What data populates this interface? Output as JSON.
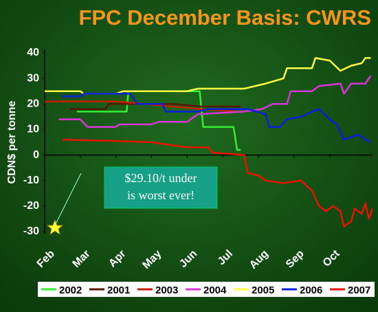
{
  "chart_data": {
    "type": "line",
    "title": "FPC December Basis: CWRS",
    "y_label": "CDN$ per tonne",
    "annotation": [
      "$29.10/t under",
      "is worst ever!"
    ],
    "xlim": [
      0,
      9.2
    ],
    "xticks": [
      {
        "value": 0,
        "label": "Feb"
      },
      {
        "value": 1,
        "label": "Mar"
      },
      {
        "value": 2,
        "label": "Apr"
      },
      {
        "value": 3,
        "label": "May"
      },
      {
        "value": 4,
        "label": "Jun"
      },
      {
        "value": 5,
        "label": "Jul"
      },
      {
        "value": 6,
        "label": "Aug"
      },
      {
        "value": 7,
        "label": "Sep"
      },
      {
        "value": 8,
        "label": "Oct"
      }
    ],
    "ylim": [
      -30,
      40
    ],
    "yticks": [
      -30,
      -20,
      -10,
      0,
      10,
      20,
      30,
      40
    ],
    "series": [
      {
        "name": "2002",
        "color": "#33ee33",
        "x": [
          0.9,
          2.3,
          2.35,
          4.35,
          4.45,
          5.3,
          5.4,
          5.5
        ],
        "values": [
          17,
          17,
          25,
          25,
          11,
          11,
          2,
          2
        ]
      },
      {
        "name": "2001",
        "color": "#5a1500",
        "x": [
          0.7,
          1.7,
          1.8,
          3.6,
          4.4,
          5.5
        ],
        "values": [
          18,
          18,
          20,
          20,
          19,
          19
        ]
      },
      {
        "name": "2003",
        "color": "#c81e00",
        "x": [
          0,
          2,
          2.8,
          3.6,
          4.4,
          5.4
        ],
        "values": [
          21,
          21,
          20,
          19,
          18,
          17
        ]
      },
      {
        "name": "2004",
        "color": "#dd33dd",
        "x": [
          0.4,
          1,
          1.2,
          2,
          2.1,
          3,
          3.2,
          4,
          4.3,
          5.6,
          6.1,
          6.4,
          6.8,
          6.9,
          7.5,
          7.7,
          8.3,
          8.4,
          8.6,
          9,
          9.15
        ],
        "values": [
          14,
          14,
          11,
          11,
          12,
          12,
          13,
          13,
          16,
          17,
          18,
          20,
          20,
          25,
          25,
          27,
          28,
          24,
          28,
          28,
          31
        ]
      },
      {
        "name": "2005",
        "color": "#ffff44",
        "x": [
          0,
          1,
          1.1,
          2,
          2.2,
          4,
          4.3,
          5.6,
          6.2,
          6.7,
          6.8,
          7.5,
          7.6,
          8,
          8.3,
          8.6,
          8.9,
          9,
          9.15
        ],
        "values": [
          25,
          25,
          24,
          24,
          25,
          25,
          26,
          26,
          28,
          30,
          34,
          34,
          38,
          37,
          33,
          35,
          36,
          38,
          38
        ]
      },
      {
        "name": "2006",
        "color": "#0a1ee0",
        "x": [
          0.5,
          1,
          1.1,
          2.4,
          2.6,
          3.3,
          3.4,
          4.3,
          4.6,
          5.7,
          6.2,
          6.3,
          6.6,
          6.8,
          7.2,
          7.5,
          7.7,
          8,
          8.2,
          8.4,
          8.6,
          8.8,
          9,
          9.15
        ],
        "values": [
          23,
          23,
          24,
          24,
          20,
          20,
          17,
          17,
          18,
          18,
          16,
          11,
          11,
          14,
          15,
          17,
          18,
          14,
          12,
          6,
          7,
          8,
          6,
          5
        ]
      },
      {
        "name": "2007",
        "color": "#ee1100",
        "x": [
          0.5,
          2,
          3,
          4,
          4.6,
          4.7,
          5.6,
          5.7,
          6,
          6.2,
          6.7,
          7.2,
          7.5,
          7.7,
          7.9,
          8.1,
          8.3,
          8.4,
          8.6,
          8.7,
          8.9,
          9,
          9.1,
          9.2
        ],
        "values": [
          6,
          5.5,
          5,
          3,
          3,
          1,
          0,
          -7,
          -8,
          -10,
          -11,
          -10,
          -14,
          -20,
          -22,
          -20,
          -22,
          -28,
          -26,
          -21,
          -23,
          -19,
          -25,
          -21
        ]
      }
    ]
  }
}
